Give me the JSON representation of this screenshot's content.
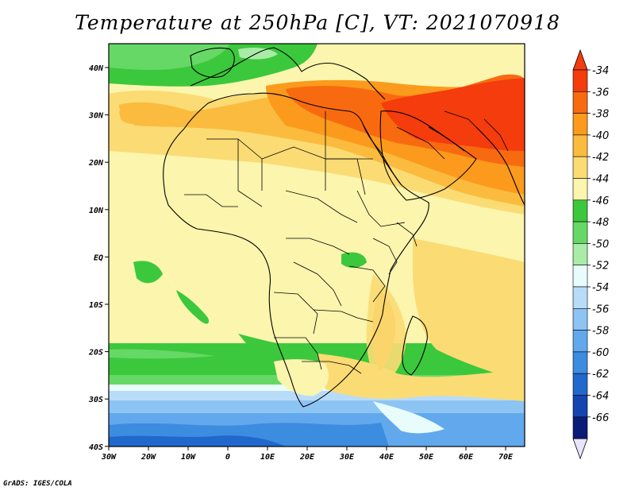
{
  "title": "Temperature at 250hPa [C], VT: 2021070918",
  "credit": "GrADS: IGES/COLA",
  "map": {
    "lon_ticks": [
      "30W",
      "20W",
      "10W",
      "0",
      "10E",
      "20E",
      "30E",
      "40E",
      "50E",
      "60E",
      "70E"
    ],
    "lat_ticks": [
      "40N",
      "30N",
      "20N",
      "10N",
      "EQ",
      "10S",
      "20S",
      "30S",
      "40S"
    ]
  },
  "colorbar": {
    "labels": [
      "-34",
      "-36",
      "-38",
      "-40",
      "-42",
      "-44",
      "-46",
      "-48",
      "-50",
      "-52",
      "-54",
      "-56",
      "-58",
      "-60",
      "-62",
      "-64",
      "-66"
    ],
    "colors": [
      "#f43c0c",
      "#f86a10",
      "#fb9a1c",
      "#fbbb3e",
      "#fbdb74",
      "#fbf5ad",
      "#3cc83c",
      "#66d866",
      "#a8eca8",
      "#e8fcfc",
      "#b8dcf8",
      "#8cc4f4",
      "#62a8ec",
      "#3c8ce0",
      "#2068cc",
      "#1444b0",
      "#0a1c78"
    ],
    "low_cap_color": "#e8e4fc",
    "high_cap_color": "#f43c0c"
  }
}
